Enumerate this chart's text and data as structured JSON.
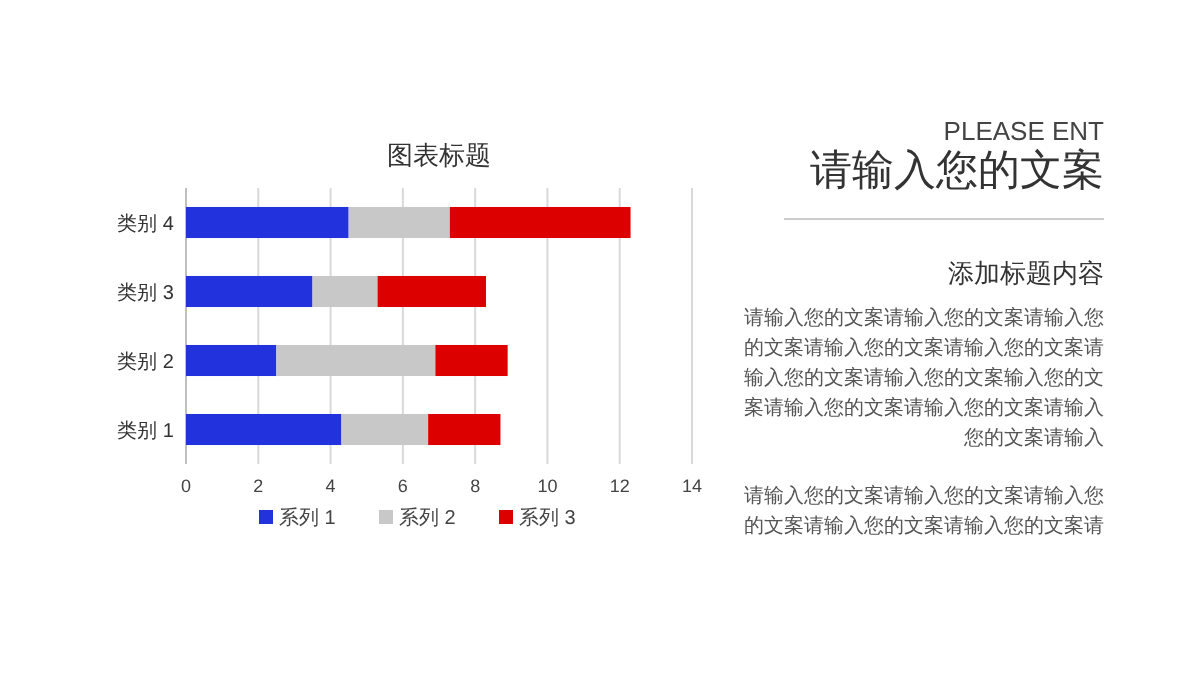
{
  "chart_data": [
    {
      "type": "bar",
      "orientation": "horizontal",
      "stacked": true,
      "title": "图表标题",
      "categories": [
        "类别 4",
        "类别 3",
        "类别 2",
        "类别 1"
      ],
      "series": [
        {
          "name": "系列 1",
          "color": "#2233dd",
          "values": [
            4.5,
            3.5,
            2.5,
            4.3
          ]
        },
        {
          "name": "系列 2",
          "color": "#c8c8c8",
          "values": [
            2.8,
            1.8,
            4.4,
            2.4
          ]
        },
        {
          "name": "系列 3",
          "color": "#dd0000",
          "values": [
            5,
            3,
            2,
            2
          ]
        }
      ],
      "xlim": [
        0,
        14
      ],
      "xticks": [
        0,
        2,
        4,
        6,
        8,
        10,
        12,
        14
      ],
      "grid": "x",
      "legend": "bottom"
    },
    {
      "type": "other",
      "subtitle": "PLEASE ENT",
      "title": "请输入您的文案",
      "annotations": [
        "添加标题内容",
        "请输入您的文案请输入您的文案请输入您的文案请输入您的文案请输入您的文案请输入您的文案请输入您的文案输入您的文案请输入您的文案请输入您的文案请输入您的文案请输入",
        "请输入您的文案请输入您的文案请输入您的文案请输入您的文案请输入您的文案请"
      ]
    }
  ]
}
